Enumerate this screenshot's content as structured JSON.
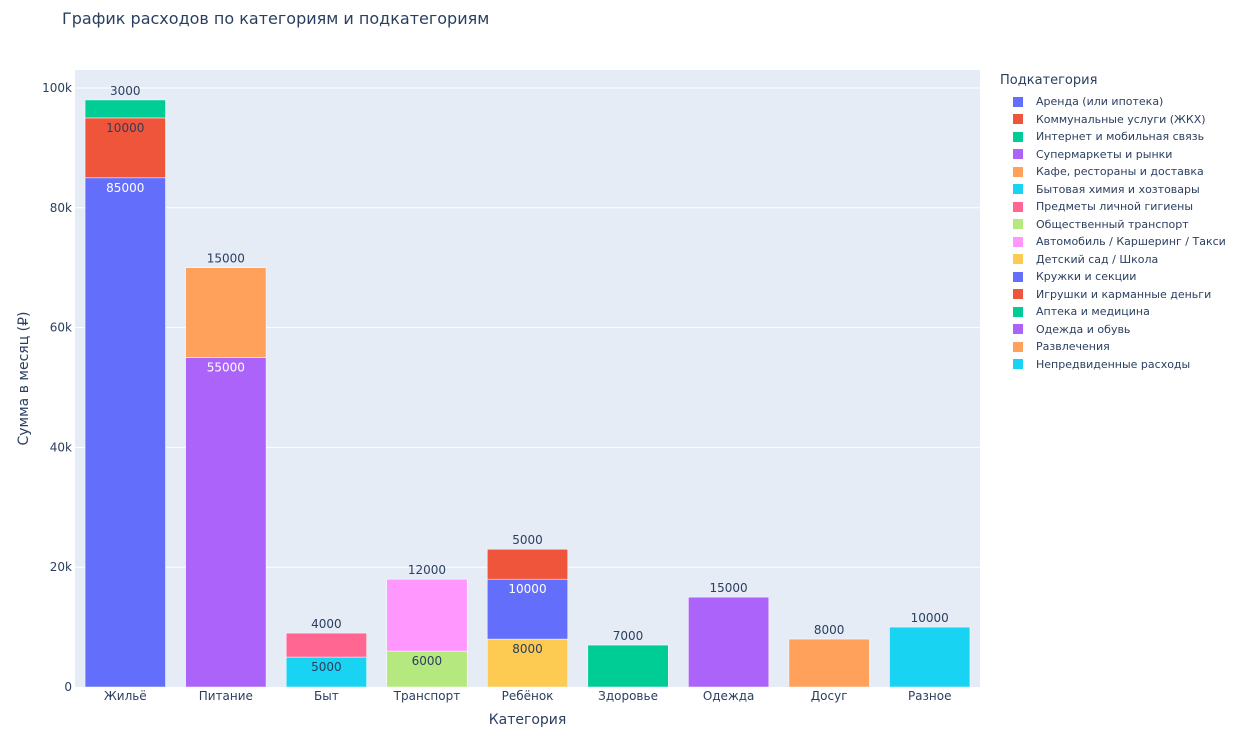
{
  "chart_data": {
    "type": "bar",
    "stacked": true,
    "title": "График расходов по категориям и подкатегориям",
    "xlabel": "Категория",
    "ylabel": "Сумма в месяц (₽)",
    "ylim": [
      0,
      103000
    ],
    "yticks": [
      0,
      20000,
      40000,
      60000,
      80000,
      100000
    ],
    "ytick_labels": [
      "0",
      "20k",
      "40k",
      "60k",
      "80k",
      "100k"
    ],
    "grid": true,
    "legend_title": "Подкатегория",
    "legend_position": "right",
    "categories": [
      "Жильё",
      "Питание",
      "Быт",
      "Транспорт",
      "Ребёнок",
      "Здоровье",
      "Одежда",
      "Досуг",
      "Разное"
    ],
    "series": [
      {
        "name": "Аренда (или ипотека)",
        "color": "#636efa",
        "values": [
          85000,
          null,
          null,
          null,
          null,
          null,
          null,
          null,
          null
        ]
      },
      {
        "name": "Коммунальные услуги (ЖКХ)",
        "color": "#EF553B",
        "values": [
          10000,
          null,
          null,
          null,
          null,
          null,
          null,
          null,
          null
        ]
      },
      {
        "name": "Интернет и мобильная связь",
        "color": "#00cc96",
        "values": [
          3000,
          null,
          null,
          null,
          null,
          null,
          null,
          null,
          null
        ]
      },
      {
        "name": "Супермаркеты и рынки",
        "color": "#ab63fa",
        "values": [
          null,
          55000,
          null,
          null,
          null,
          null,
          null,
          null,
          null
        ]
      },
      {
        "name": "Кафе, рестораны и доставка",
        "color": "#FFA15A",
        "values": [
          null,
          15000,
          null,
          null,
          null,
          null,
          null,
          null,
          null
        ]
      },
      {
        "name": "Бытовая химия и хозтовары",
        "color": "#19d3f3",
        "values": [
          null,
          null,
          5000,
          null,
          null,
          null,
          null,
          null,
          null
        ]
      },
      {
        "name": "Предметы личной гигиены",
        "color": "#FF6692",
        "values": [
          null,
          null,
          4000,
          null,
          null,
          null,
          null,
          null,
          null
        ]
      },
      {
        "name": "Общественный транспорт",
        "color": "#B6E880",
        "values": [
          null,
          null,
          null,
          6000,
          null,
          null,
          null,
          null,
          null
        ]
      },
      {
        "name": "Автомобиль / Каршеринг / Такси",
        "color": "#FF97FF",
        "values": [
          null,
          null,
          null,
          12000,
          null,
          null,
          null,
          null,
          null
        ]
      },
      {
        "name": "Детский сад / Школа",
        "color": "#FECB52",
        "values": [
          null,
          null,
          null,
          null,
          8000,
          null,
          null,
          null,
          null
        ]
      },
      {
        "name": "Кружки и секции",
        "color": "#636efa",
        "values": [
          null,
          null,
          null,
          null,
          10000,
          null,
          null,
          null,
          null
        ]
      },
      {
        "name": "Игрушки и карманные деньги",
        "color": "#EF553B",
        "values": [
          null,
          null,
          null,
          null,
          5000,
          null,
          null,
          null,
          null
        ]
      },
      {
        "name": "Аптека и медицина",
        "color": "#00cc96",
        "values": [
          null,
          null,
          null,
          null,
          null,
          7000,
          null,
          null,
          null
        ]
      },
      {
        "name": "Одежда и обувь",
        "color": "#ab63fa",
        "values": [
          null,
          null,
          null,
          null,
          null,
          null,
          15000,
          null,
          null
        ]
      },
      {
        "name": "Развлечения",
        "color": "#FFA15A",
        "values": [
          null,
          null,
          null,
          null,
          null,
          null,
          null,
          8000,
          null
        ]
      },
      {
        "name": "Непредвиденные расходы",
        "color": "#19d3f3",
        "values": [
          null,
          null,
          null,
          null,
          null,
          null,
          null,
          null,
          10000
        ]
      }
    ]
  }
}
